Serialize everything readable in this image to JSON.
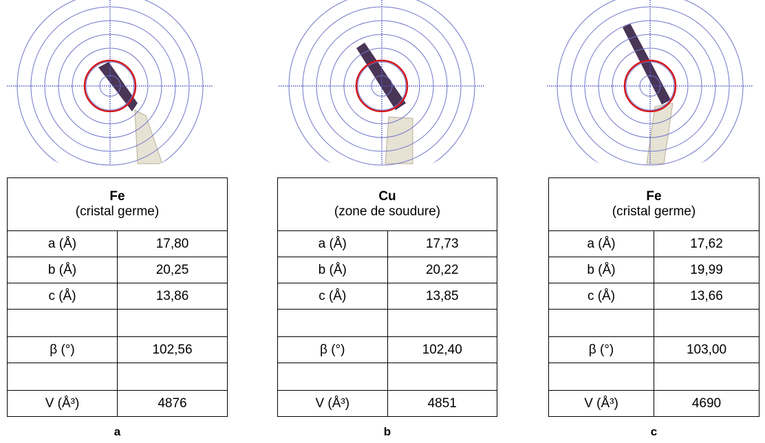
{
  "panels": [
    {
      "table": {
        "title": "Fe",
        "subtitle": "(cristal germe)",
        "rows": [
          [
            "a (Å)",
            "17,80"
          ],
          [
            "b (Å)",
            "20,25"
          ],
          [
            "c (Å)",
            "13,86"
          ],
          [
            "β (°)",
            "102,56"
          ],
          [
            "V (Å³)",
            "4876"
          ]
        ]
      },
      "caption": "a"
    },
    {
      "table": {
        "title": "Cu",
        "subtitle": "(zone de soudure)",
        "rows": [
          [
            "a (Å)",
            "17,73"
          ],
          [
            "b (Å)",
            "20,22"
          ],
          [
            "c (Å)",
            "13,85"
          ],
          [
            "β (°)",
            "102,40"
          ],
          [
            "V (Å³)",
            "4851"
          ]
        ]
      },
      "caption": "b"
    },
    {
      "table": {
        "title": "Fe",
        "subtitle": "(cristal germe)",
        "rows": [
          [
            "a (Å)",
            "17,62"
          ],
          [
            "b (Å)",
            "19,99"
          ],
          [
            "c (Å)",
            "13,66"
          ],
          [
            "β (°)",
            "103,00"
          ],
          [
            "V (Å³)",
            "4690"
          ]
        ]
      },
      "caption": "c"
    }
  ]
}
